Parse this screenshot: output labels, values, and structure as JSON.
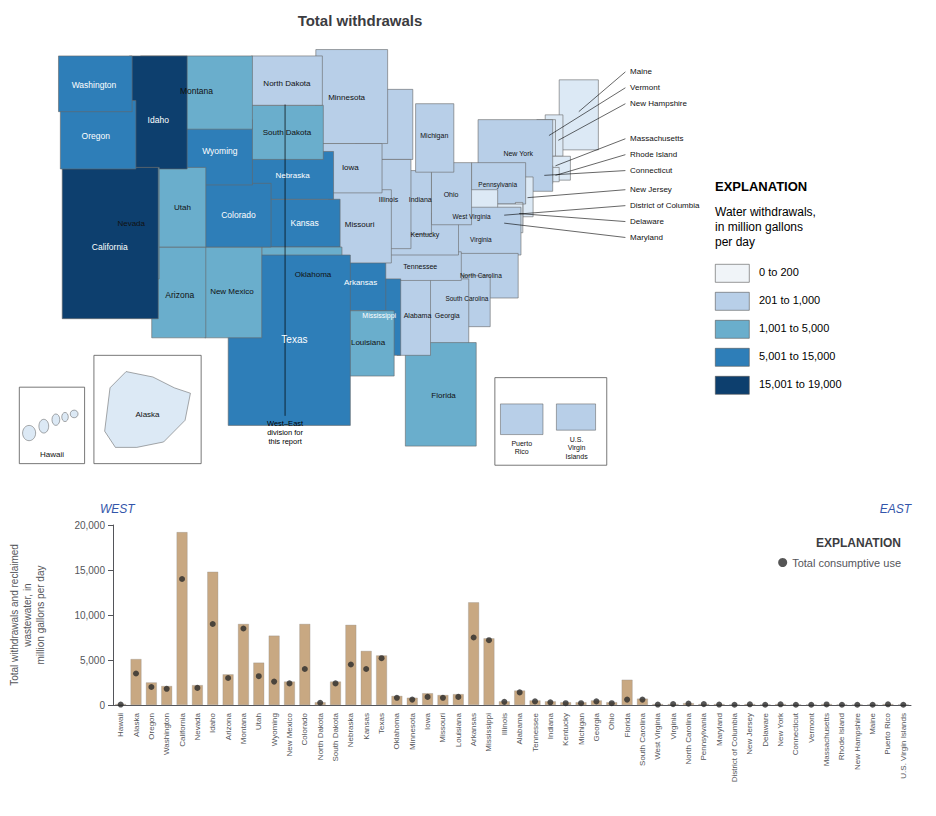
{
  "chart_data": [
    {
      "type": "map",
      "title": "Total withdrawals",
      "categories": [
        "Maine",
        "New Hampshire",
        "Vermont",
        "Massachusetts",
        "Rhode Island",
        "Connecticut",
        "New York",
        "New Jersey",
        "Pennsylvania",
        "Delaware",
        "Maryland",
        "West Virginia",
        "Virginia",
        "North Carolina",
        "South Carolina",
        "Georgia",
        "Florida",
        "Alabama",
        "Tennessee",
        "Kentucky",
        "Ohio",
        "Indiana",
        "Michigan",
        null,
        "Illinois",
        "Mississippi",
        "Arkansas",
        "Louisiana",
        "Missouri",
        "Iowa",
        "Minnesota",
        "Kansas",
        "Nebraska",
        "South Dakota",
        "North Dakota",
        "Oklahoma",
        "Texas",
        "New Mexico",
        "Colorado",
        "Wyoming",
        "Montana",
        "Arizona",
        "Utah",
        "Idaho",
        "Nevada",
        "California",
        "Oregon",
        "Washington",
        "District of Columbia",
        "Hawaii",
        "Alaska",
        "Puerto\nRico",
        "U.S.\nVirgin\nIslands"
      ],
      "colors": [
        "#dce9f5",
        "#dce9f5",
        "#dce9f5",
        "#dce9f5",
        "#dce9f5",
        "#dce9f5",
        "#b8cfe8",
        "#dce9f5",
        "#b8cfe8",
        "#dce9f5",
        "#dce9f5",
        "#dce9f5",
        "#b8cfe8",
        "#b8cfe8",
        "#b8cfe8",
        "#b8cfe8",
        "#6aaecc",
        "#b8cfe8",
        "#b8cfe8",
        "#b8cfe8",
        "#b8cfe8",
        "#b8cfe8",
        "#b8cfe8",
        "#b8cfe8",
        "#b8cfe8",
        "#2e7eb8",
        "#2e7eb8",
        "#6aaecc",
        "#b8cfe8",
        "#b8cfe8",
        "#b8cfe8",
        "#2e7eb8",
        "#2e7eb8",
        "#6aaecc",
        "#b8cfe8",
        "#6aaecc",
        "#2e7eb8",
        "#6aaecc",
        "#2e7eb8",
        "#2e7eb8",
        "#6aaecc",
        "#6aaecc",
        "#6aaecc",
        "#0d3f6e",
        "#6aaecc",
        "#0d3f6e",
        "#2e7eb8",
        "#2e7eb8",
        null,
        "#dce9f5",
        "#dce9f5",
        "#b8cfe8",
        "#b8cfe8"
      ],
      "series": [
        {
          "name": "0 to 200",
          "color": "#f0f4f8"
        },
        {
          "name": "201 to 1,000",
          "color": "#b8cfe8"
        },
        {
          "name": "1,001 to 5,000",
          "color": "#6aaecc"
        },
        {
          "name": "5,001 to 15,000",
          "color": "#2e7eb8"
        },
        {
          "name": "15,001 to 19,000",
          "color": "#0d3f6e"
        }
      ],
      "legend_title": "EXPLANATION",
      "legend_subtitle": "Water withdrawals,\nin million gallons\nper day",
      "annotations": [
        "West–East\ndivision for\nthis report"
      ]
    },
    {
      "type": "bar",
      "ylabel": "Total withdrawals and reclaimed\nwastewater, in\nmillion gallons per day",
      "annotations": [
        "WEST",
        "EAST"
      ],
      "categories": [
        "Hawaii",
        "Alaska",
        "Oregon",
        "Washington",
        "California",
        "Nevada",
        "Idaho",
        "Arizona",
        "Montana",
        "Utah",
        "Wyoming",
        "New Mexico",
        "Colorado",
        "North Dakota",
        "South Dakota",
        "Nebraska",
        "Kansas",
        "Texas",
        "Oklahoma",
        "Minnesota",
        "Iowa",
        "Missouri",
        "Louisiana",
        "Arkansas",
        "Mississippi",
        "Illinois",
        "Alabama",
        "Tennessee",
        "Indiana",
        "Kentucky",
        "Michigan",
        "Georgia",
        "Ohio",
        "Florida",
        "South Carolina",
        "West Virginia",
        "Virginia",
        "North Carolina",
        "Pennsylvania",
        "Maryland",
        "District of Columbia",
        "New Jersey",
        "Delaware",
        "New York",
        "Connecticut",
        "Vermont",
        "Massachusetts",
        "Rhode Island",
        "New Hampshire",
        "Maine",
        "Puerto Rico",
        "U.S. Virgin Islands"
      ],
      "series": [
        {
          "type": "bar",
          "color": "#c8a882",
          "values": [
            100,
            5100,
            2500,
            2100,
            19200,
            2200,
            14800,
            3400,
            9000,
            4700,
            7700,
            2600,
            9000,
            300,
            2600,
            8900,
            6000,
            5500,
            1000,
            800,
            1300,
            1100,
            1200,
            11400,
            7400,
            400,
            1600,
            500,
            400,
            300,
            300,
            500,
            300,
            2800,
            700,
            100,
            100,
            200,
            100,
            100,
            50,
            100,
            50,
            100,
            50,
            50,
            100,
            50,
            50,
            50,
            100,
            50
          ]
        },
        {
          "type": "scatter",
          "name": "Total consumptive use",
          "color": "#2a2a2a",
          "marker": "circle",
          "values": [
            50,
            3500,
            2000,
            1800,
            14000,
            1900,
            9000,
            3000,
            8500,
            3200,
            2600,
            2400,
            4000,
            250,
            2400,
            4500,
            4000,
            5200,
            800,
            600,
            900,
            800,
            900,
            7500,
            7200,
            350,
            1400,
            400,
            300,
            200,
            200,
            400,
            200,
            600,
            600,
            50,
            100,
            150,
            100,
            50,
            30,
            80,
            30,
            80,
            30,
            30,
            60,
            30,
            30,
            30,
            80,
            30
          ]
        }
      ],
      "legend": "upper right",
      "legend_title": "EXPLANATION",
      "ylim": [
        0,
        20000
      ],
      "yticks": [
        0,
        {
          "value": 5000,
          "label": "5,000"
        },
        {
          "value": 10000,
          "label": "10,000"
        },
        {
          "value": 15000,
          "label": "15,000"
        },
        {
          "value": 20000,
          "label": "20,000"
        }
      ],
      "grid": false
    }
  ]
}
